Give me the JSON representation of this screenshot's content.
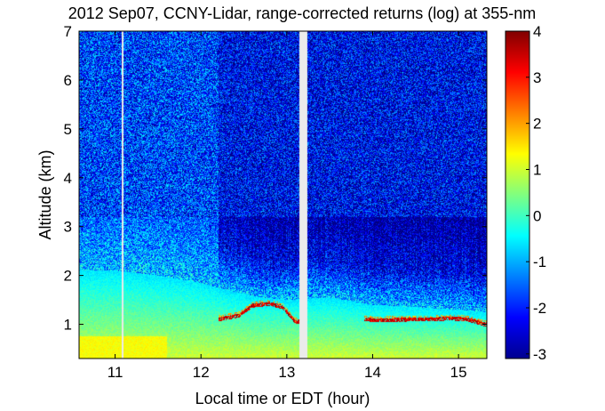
{
  "chart_data": {
    "type": "heatmap",
    "title": "2012 Sep07, CCNY-Lidar, range-corrected returns (log) at 355-nm",
    "xlabel": "Local time or EDT (hour)",
    "ylabel": "Altitude (km)",
    "xlim": [
      10.58,
      15.33
    ],
    "ylim": [
      0.3,
      7.0
    ],
    "x_ticks": [
      11,
      12,
      13,
      14,
      15
    ],
    "y_ticks": [
      1,
      2,
      3,
      4,
      5,
      6,
      7
    ],
    "colorbar": {
      "colormap": "jet",
      "range": [
        -3.1,
        4.0
      ],
      "ticks": [
        4,
        3,
        2,
        1,
        0,
        -1,
        -2,
        -3
      ]
    },
    "data_gaps_hours": [
      [
        11.08,
        11.1
      ],
      [
        13.15,
        13.24
      ]
    ],
    "features": {
      "aerosol_layer_top_km": [
        {
          "x": 10.6,
          "y": 2.1
        },
        {
          "x": 11.0,
          "y": 2.1
        },
        {
          "x": 11.5,
          "y": 2.0
        },
        {
          "x": 12.0,
          "y": 1.85
        },
        {
          "x": 12.3,
          "y": 1.7
        },
        {
          "x": 12.7,
          "y": 1.55
        },
        {
          "x": 13.0,
          "y": 1.5
        },
        {
          "x": 13.5,
          "y": 1.55
        },
        {
          "x": 14.0,
          "y": 1.4
        },
        {
          "x": 14.5,
          "y": 1.35
        },
        {
          "x": 15.0,
          "y": 1.3
        },
        {
          "x": 15.33,
          "y": 1.25
        }
      ],
      "cloud_base_km": [
        {
          "x": 12.2,
          "y": 1.1
        },
        {
          "x": 12.45,
          "y": 1.18
        },
        {
          "x": 12.6,
          "y": 1.38
        },
        {
          "x": 12.8,
          "y": 1.42
        },
        {
          "x": 12.95,
          "y": 1.35
        },
        {
          "x": 13.1,
          "y": 1.05
        },
        {
          "x": 13.92,
          "y": 1.1
        },
        {
          "x": 14.05,
          "y": 1.08
        },
        {
          "x": 14.5,
          "y": 1.1
        },
        {
          "x": 14.7,
          "y": 1.1
        },
        {
          "x": 14.9,
          "y": 1.12
        },
        {
          "x": 15.1,
          "y": 1.1
        },
        {
          "x": 15.3,
          "y": 1.0
        }
      ]
    }
  }
}
